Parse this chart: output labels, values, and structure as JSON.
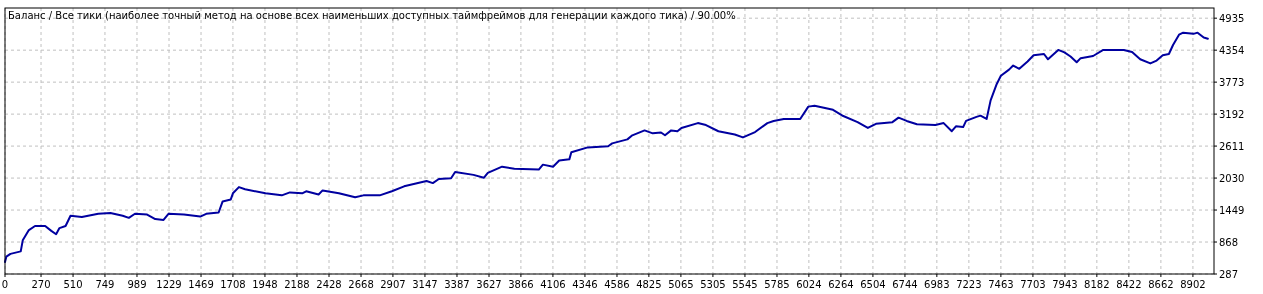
{
  "chart_data": {
    "type": "line",
    "title": "Баланс / Все тики (наиболее точный метод на основе всех наименьших доступных таймфреймов для генерации каждого тика) / 90.00%",
    "xlim": [
      0,
      9060
    ],
    "ylim": [
      287,
      5120
    ],
    "xticks": [
      0,
      270,
      510,
      749,
      989,
      1229,
      1469,
      1708,
      1948,
      2188,
      2428,
      2668,
      2907,
      3147,
      3387,
      3627,
      3866,
      4106,
      4346,
      4586,
      4825,
      5065,
      5305,
      5545,
      5785,
      6024,
      6264,
      6504,
      6744,
      6983,
      7223,
      7463,
      7703,
      7943,
      8182,
      8422,
      8662,
      8902
    ],
    "yticks": [
      287,
      868,
      1449,
      2030,
      2611,
      3192,
      3773,
      4354,
      4935
    ],
    "grid": true,
    "marker": "none",
    "line_style": "solid",
    "series": [
      {
        "color": "#0000a0",
        "x": [
          0,
          10,
          41,
          118,
          133,
          179,
          225,
          301,
          347,
          383,
          408,
          454,
          491,
          576,
          699,
          790,
          882,
          928,
          974,
          1065,
          1126,
          1188,
          1225,
          1341,
          1463,
          1508,
          1601,
          1631,
          1692,
          1708,
          1753,
          1799,
          1952,
          2074,
          2135,
          2227,
          2257,
          2350,
          2380,
          2502,
          2624,
          2686,
          2808,
          2899,
          2991,
          3159,
          3206,
          3251,
          3343,
          3373,
          3511,
          3588,
          3618,
          3725,
          3817,
          4000,
          4031,
          4107,
          4153,
          4229,
          4244,
          4367,
          4520,
          4550,
          4664,
          4701,
          4793,
          4854,
          4916,
          4946,
          4992,
          5039,
          5069,
          5192,
          5253,
          5346,
          5469,
          5530,
          5621,
          5713,
          5760,
          5836,
          5959,
          6020,
          6067,
          6205,
          6282,
          6389,
          6466,
          6527,
          6650,
          6696,
          6757,
          6834,
          6972,
          7034,
          7095,
          7126,
          7180,
          7202,
          7280,
          7310,
          7356,
          7386,
          7432,
          7463,
          7524,
          7555,
          7601,
          7663,
          7708,
          7786,
          7816,
          7893,
          7939,
          7985,
          8031,
          8061,
          8154,
          8230,
          8384,
          8446,
          8507,
          8583,
          8630,
          8676,
          8722,
          8753,
          8798,
          8829,
          8906,
          8937,
          8983,
          9014
        ],
        "values": [
          505,
          602,
          653,
          698,
          899,
          1085,
          1159,
          1159,
          1070,
          1010,
          1121,
          1159,
          1345,
          1323,
          1381,
          1396,
          1345,
          1307,
          1381,
          1367,
          1285,
          1270,
          1381,
          1367,
          1330,
          1381,
          1405,
          1605,
          1642,
          1753,
          1866,
          1828,
          1753,
          1716,
          1769,
          1753,
          1790,
          1731,
          1806,
          1753,
          1680,
          1716,
          1716,
          1790,
          1880,
          1977,
          1939,
          2013,
          2028,
          2141,
          2088,
          2035,
          2124,
          2237,
          2199,
          2184,
          2274,
          2237,
          2348,
          2370,
          2498,
          2587,
          2609,
          2660,
          2733,
          2807,
          2896,
          2843,
          2858,
          2807,
          2896,
          2881,
          2940,
          3029,
          2993,
          2881,
          2822,
          2769,
          2866,
          3029,
          3068,
          3104,
          3104,
          3328,
          3344,
          3270,
          3157,
          3046,
          2940,
          3015,
          3046,
          3128,
          3068,
          3008,
          2993,
          3029,
          2881,
          2971,
          2956,
          3068,
          3142,
          3164,
          3104,
          3441,
          3740,
          3889,
          4000,
          4075,
          4015,
          4149,
          4262,
          4284,
          4188,
          4358,
          4313,
          4238,
          4135,
          4209,
          4248,
          4358,
          4358,
          4321,
          4188,
          4113,
          4164,
          4262,
          4284,
          4448,
          4635,
          4672,
          4650,
          4672,
          4583,
          4561
        ]
      }
    ]
  }
}
